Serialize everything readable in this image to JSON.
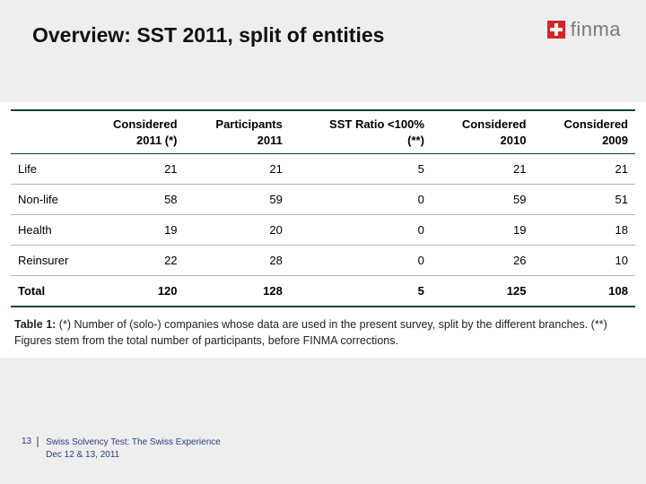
{
  "title": "Overview: SST 2011, split of entities",
  "logo": {
    "text": "finma",
    "flag_bg": "#d8232a"
  },
  "table": {
    "columns": [
      {
        "l1": "",
        "l2": ""
      },
      {
        "l1": "Considered",
        "l2": "2011 (*)"
      },
      {
        "l1": "Participants",
        "l2": "2011"
      },
      {
        "l1": "SST Ratio <100%",
        "l2": "(**)"
      },
      {
        "l1": "Considered",
        "l2": "2010"
      },
      {
        "l1": "Considered",
        "l2": "2009"
      }
    ],
    "rows": [
      {
        "label": "Life",
        "v": [
          "21",
          "21",
          "5",
          "21",
          "21"
        ]
      },
      {
        "label": "Non-life",
        "v": [
          "58",
          "59",
          "0",
          "59",
          "51"
        ]
      },
      {
        "label": "Health",
        "v": [
          "19",
          "20",
          "0",
          "19",
          "18"
        ]
      },
      {
        "label": "Reinsurer",
        "v": [
          "22",
          "28",
          "0",
          "26",
          "10"
        ]
      }
    ],
    "total": {
      "label": "Total",
      "v": [
        "120",
        "128",
        "5",
        "125",
        "108"
      ]
    }
  },
  "caption": {
    "label": "Table 1:",
    "text": "(*) Number of (solo-) companies whose data are used in the present survey, split by the different branches. (**) Figures stem from the total number of participants, before FINMA corrections."
  },
  "footer": {
    "page_number": "13",
    "line1": "Swiss Solvency Test: The Swiss Experience",
    "line2": "Dec 12 & 13, 2011"
  },
  "colors": {
    "rule": "#10472f",
    "band": "#eeeeee",
    "footer_text": "#2a3e82"
  }
}
